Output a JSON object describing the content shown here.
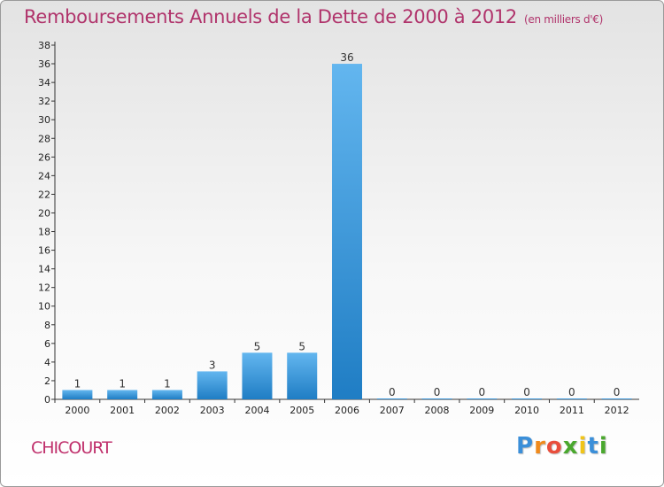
{
  "chart_data": {
    "type": "bar",
    "title": "Remboursements Annuels de la Dette de 2000 à 2012",
    "unit_label": "(en milliers d'€)",
    "categories": [
      "2000",
      "2001",
      "2002",
      "2003",
      "2004",
      "2005",
      "2006",
      "2007",
      "2008",
      "2009",
      "2010",
      "2011",
      "2012"
    ],
    "values": [
      1,
      1,
      1,
      3,
      5,
      5,
      36,
      0,
      0,
      0,
      0,
      0,
      0
    ],
    "ylim": [
      0,
      38
    ],
    "yticks": [
      0,
      2,
      4,
      6,
      8,
      10,
      12,
      14,
      16,
      18,
      20,
      22,
      24,
      26,
      28,
      30,
      32,
      34,
      36,
      38
    ],
    "xlabel": "",
    "ylabel": "",
    "grid": false,
    "bar_color_light": "#63b6ef",
    "bar_color_dark": "#1f7dc4"
  },
  "location": "CHICOURT",
  "logo": {
    "letters": [
      "P",
      "r",
      "o",
      "x",
      "i",
      "t",
      "i"
    ],
    "colors": [
      "#3b8fd9",
      "#f08a1c",
      "#e94e3c",
      "#4aa82e",
      "#f0c419",
      "#3b8fd9",
      "#4aa82e"
    ]
  },
  "colors": {
    "title": "#b0336b",
    "axis": "#333333"
  }
}
